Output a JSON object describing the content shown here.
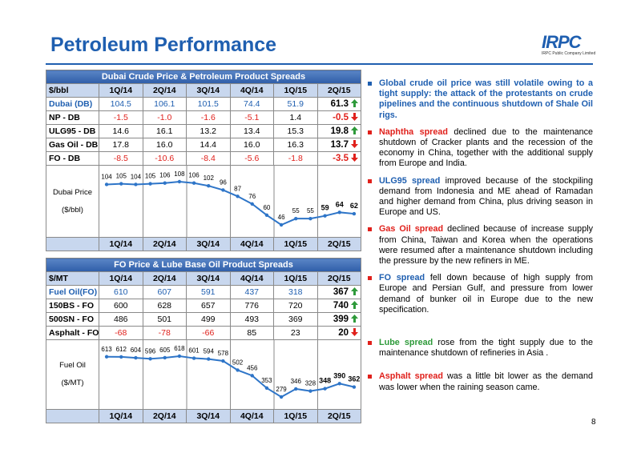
{
  "title": "Petroleum Performance",
  "logo": {
    "name": "IRPC",
    "subtitle": "IRPC Public Company Limited"
  },
  "page_number": "8",
  "tables": [
    {
      "title": "Dubai Crude Price & Petroleum Product Spreads",
      "header": [
        "$/bbl",
        "1Q/14",
        "2Q/14",
        "3Q/14",
        "4Q/14",
        "1Q/15",
        "2Q/15"
      ],
      "rows": [
        {
          "label": "Dubai (DB)",
          "values": [
            "104.5",
            "106.1",
            "101.5",
            "74.4",
            "51.9",
            "61.3"
          ],
          "trend": "up",
          "color": "#1f5fb0"
        },
        {
          "label": "NP - DB",
          "values": [
            "-1.5",
            "-1.0",
            "-1.6",
            "-5.1",
            "1.4",
            "-0.5"
          ],
          "trend": "down",
          "color": "#000000"
        },
        {
          "label": "ULG95 - DB",
          "values": [
            "14.6",
            "16.1",
            "13.2",
            "13.4",
            "15.3",
            "19.8"
          ],
          "trend": "up",
          "color": "#000000"
        },
        {
          "label": "Gas Oil - DB",
          "values": [
            "17.8",
            "16.0",
            "14.4",
            "16.0",
            "16.3",
            "13.7"
          ],
          "trend": "down",
          "color": "#000000"
        },
        {
          "label": "FO - DB",
          "values": [
            "-8.5",
            "-10.6",
            "-8.4",
            "-5.6",
            "-1.8",
            "-3.5"
          ],
          "trend": "down",
          "color": "#000000"
        }
      ],
      "chart": {
        "type": "line",
        "label": "Dubai Price",
        "unit": "($/bbl)",
        "color": "#2e75c8",
        "values": [
          104,
          105,
          104,
          105,
          106,
          108,
          106,
          102,
          96,
          87,
          76,
          60,
          46,
          55,
          55,
          59,
          64,
          62
        ]
      }
    },
    {
      "title": "FO Price & Lube Base Oil Product Spreads",
      "header": [
        "$/MT",
        "1Q/14",
        "2Q/14",
        "3Q/14",
        "4Q/14",
        "1Q/15",
        "2Q/15"
      ],
      "rows": [
        {
          "label": "Fuel Oil(FO)",
          "values": [
            "610",
            "607",
            "591",
            "437",
            "318",
            "367"
          ],
          "trend": "up",
          "color": "#1f5fb0"
        },
        {
          "label": "150BS - FO",
          "values": [
            "600",
            "628",
            "657",
            "776",
            "720",
            "740"
          ],
          "trend": "up",
          "color": "#000000"
        },
        {
          "label": "500SN - FO",
          "values": [
            "486",
            "501",
            "499",
            "493",
            "369",
            "399"
          ],
          "trend": "up",
          "color": "#000000"
        },
        {
          "label": "Asphalt - FO",
          "values": [
            "-68",
            "-78",
            "-66",
            "85",
            "23",
            "20"
          ],
          "trend": "down",
          "color": "#000000"
        }
      ],
      "chart": {
        "type": "line",
        "label": "Fuel Oil",
        "unit": "($/MT)",
        "color": "#2e75c8",
        "values": [
          613,
          612,
          604,
          596,
          605,
          618,
          601,
          594,
          578,
          502,
          456,
          353,
          279,
          346,
          328,
          348,
          390,
          362
        ]
      }
    }
  ],
  "bullets": [
    {
      "lead": "Global crude oil price was still volatile owing to a tight supply: the attack of the protestants on crude pipelines and the continuous shutdown of Shale Oil rigs.",
      "color": "#1f5fb0"
    },
    {
      "lead": "Naphtha spread",
      "text": " declined due to the maintenance shutdown of Cracker plants and the recession of the economy in China, together with the additional supply from Europe and India.",
      "color": "#e0201b"
    },
    {
      "lead": "ULG95 spread",
      "text": " improved because of the stockpiling demand from Indonesia and ME ahead of Ramadan and higher demand from China, plus driving season in Europe and US.",
      "color": "#1f5fb0"
    },
    {
      "lead": "Gas Oil spread",
      "text": " declined because of increase supply from China, Taiwan and Korea when the operations were resumed after a maintenance shutdown including the pressure by the new refiners in ME.",
      "color": "#e0201b"
    },
    {
      "lead": "FO spread",
      "text": " fell down because of high supply from Europe and Persian Gulf, and pressure from lower demand of bunker oil in Europe due to the new specification.",
      "color": "#1f5fb0"
    },
    {
      "lead": "Lube spread",
      "text": " rose from the tight supply due to the maintenance shutdown of refineries in Asia .",
      "color": "#2e9a3a"
    },
    {
      "lead": "Asphalt spread",
      "text": " was a little bit lower as the demand was lower when the raining season came.",
      "color": "#e0201b"
    }
  ]
}
